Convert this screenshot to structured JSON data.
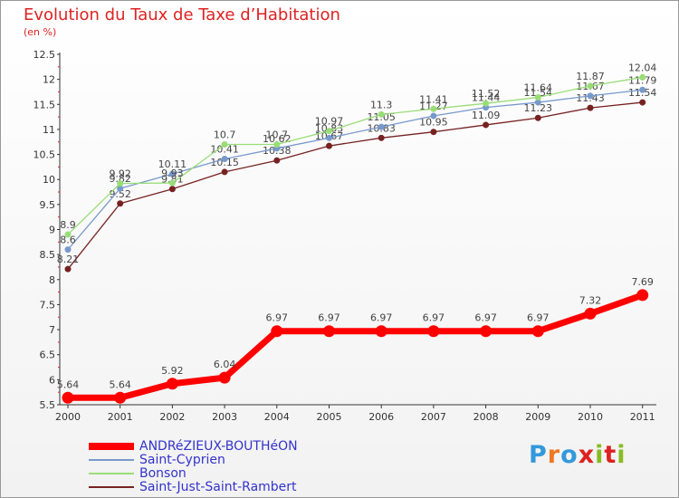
{
  "title": "Evolution du Taux de Taxe d’Habitation",
  "unit_label": "(en %)",
  "chart_data": {
    "type": "line",
    "x": [
      2000,
      2001,
      2002,
      2003,
      2004,
      2005,
      2006,
      2007,
      2008,
      2009,
      2010,
      2011
    ],
    "ylim": [
      5.5,
      12.5
    ],
    "y_ticks": [
      5.5,
      6,
      6.5,
      7,
      7.5,
      8,
      8.5,
      9,
      9.5,
      10,
      10.5,
      11,
      11.5,
      12,
      12.5
    ],
    "y_tick_labels": [
      "5.5",
      "6",
      "6.5",
      "7",
      "7.5",
      "8",
      "8.5",
      "9",
      "9.5",
      "10",
      "10.5",
      "11",
      "11.5",
      "12",
      "12.5"
    ],
    "grid": false,
    "legend_position": "bottom-left",
    "series": [
      {
        "name": "ANDRéZIEUX-BOUTHéON",
        "color": "#ff0000",
        "values": [
          5.64,
          5.64,
          5.92,
          6.04,
          6.97,
          6.97,
          6.97,
          6.97,
          6.97,
          6.97,
          7.32,
          7.69
        ],
        "labels": [
          "5.64",
          "5.64",
          "5.92",
          "6.04",
          "6.97",
          "6.97",
          "6.97",
          "6.97",
          "6.97",
          "6.97",
          "7.32",
          "7.69"
        ]
      },
      {
        "name": "Saint-Cyprien",
        "color": "#7799cc",
        "values": [
          8.6,
          9.82,
          10.11,
          10.41,
          10.62,
          10.83,
          11.05,
          11.27,
          11.44,
          11.54,
          11.67,
          11.79
        ],
        "labels": [
          "8.6",
          "9.82",
          "10.11",
          "10.41",
          "10.62",
          "10.83",
          "11.05",
          "11.27",
          "11.44",
          "11.54",
          "11.67",
          "11.79"
        ]
      },
      {
        "name": "Bonson",
        "color": "#99dd77",
        "values": [
          8.9,
          9.92,
          9.93,
          10.7,
          10.7,
          10.97,
          11.3,
          11.41,
          11.52,
          11.64,
          11.87,
          12.04
        ],
        "labels": [
          "8.9",
          "9.92",
          "9.93",
          "10.7",
          "10.7",
          "10.97",
          "11.3",
          "11.41",
          "11.52",
          "11.64",
          "11.87",
          "12.04"
        ]
      },
      {
        "name": "Saint-Just-Saint-Rambert",
        "color": "#772222",
        "values": [
          8.21,
          9.52,
          9.81,
          10.15,
          10.38,
          10.67,
          10.83,
          10.95,
          11.09,
          11.23,
          11.43,
          11.54
        ],
        "labels": [
          "8.21",
          "9.52",
          "9.81",
          "10.15",
          "10.38",
          "10.67",
          "10.83",
          "10.95",
          "11.09",
          "11.23",
          "11.43",
          "11.54"
        ]
      }
    ]
  },
  "logo": {
    "letters": [
      "P",
      "r",
      "o",
      "x",
      "i",
      "t",
      "i"
    ],
    "colors": [
      "#3399dd",
      "#ee7722",
      "#3399dd",
      "#dd2222",
      "#88bb22",
      "#dd2222",
      "#88bb22"
    ]
  }
}
